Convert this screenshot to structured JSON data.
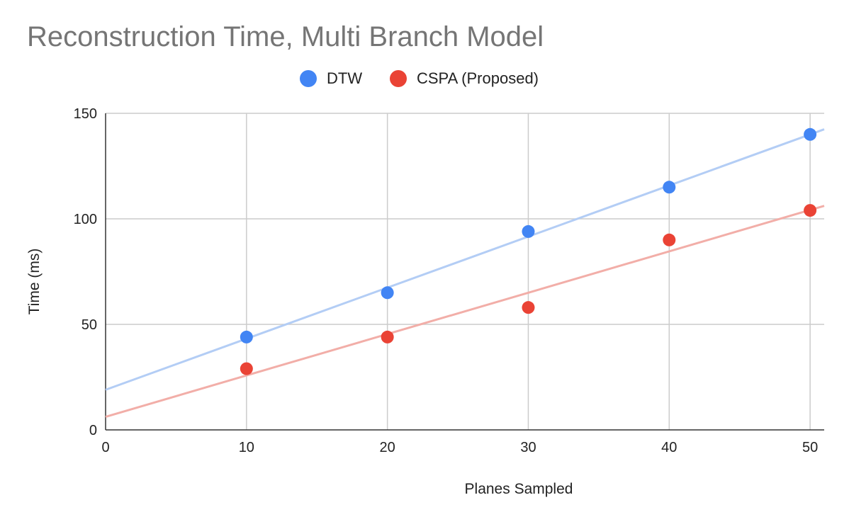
{
  "chart_data": {
    "type": "scatter",
    "title": "Reconstruction Time, Multi Branch Model",
    "xlabel": "Planes Sampled",
    "ylabel": "Time (ms)",
    "xlim": [
      0,
      51
    ],
    "ylim": [
      0,
      150
    ],
    "xticks": [
      0,
      10,
      20,
      30,
      40,
      50
    ],
    "yticks": [
      0,
      50,
      100,
      150
    ],
    "xtick_labels": [
      "0",
      "10",
      "20",
      "30",
      "40",
      "50"
    ],
    "ytick_labels": [
      "0",
      "50",
      "100",
      "150"
    ],
    "grid": true,
    "legend": "top",
    "trendlines": true,
    "series": [
      {
        "name": "DTW",
        "color": "#4285f4",
        "trend_color": "#b3cdf5",
        "x": [
          10,
          20,
          30,
          40,
          50
        ],
        "y": [
          44,
          65,
          94,
          115,
          140
        ]
      },
      {
        "name": "CSPA (Proposed)",
        "color": "#ea4335",
        "trend_color": "#f2aea8",
        "x": [
          10,
          20,
          30,
          40,
          50
        ],
        "y": [
          29,
          44,
          58,
          90,
          104
        ]
      }
    ]
  }
}
